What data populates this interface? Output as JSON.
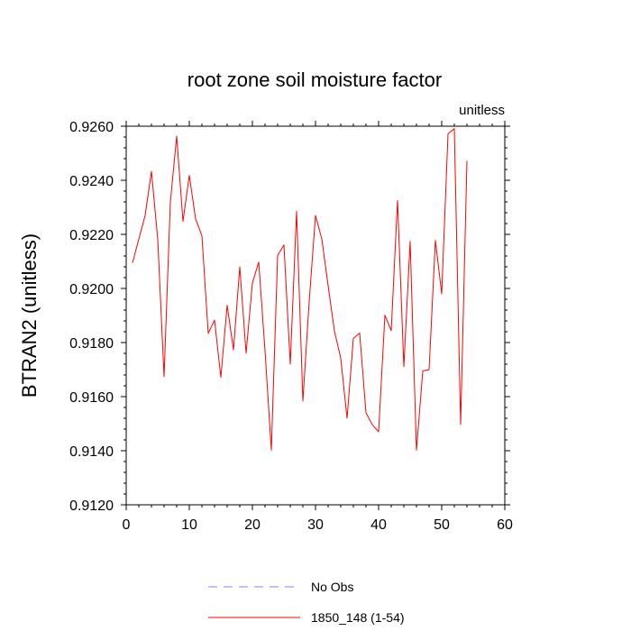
{
  "chart_data": {
    "type": "line",
    "title": "root zone soil moisture factor",
    "units_label": "unitless",
    "ylabel": "BTRAN2  (unitless)",
    "xlabel": "",
    "xlim": [
      0,
      60
    ],
    "ylim": [
      0.912,
      0.926
    ],
    "x_ticks": [
      0,
      10,
      20,
      30,
      40,
      50,
      60
    ],
    "x_tick_labels": [
      "0",
      "10",
      "20",
      "30",
      "40",
      "50",
      "60"
    ],
    "y_ticks": [
      0.912,
      0.914,
      0.916,
      0.918,
      0.92,
      0.922,
      0.924,
      0.926
    ],
    "y_tick_labels": [
      "0.9120",
      "0.9140",
      "0.9160",
      "0.9180",
      "0.9200",
      "0.9220",
      "0.9240",
      "0.9260"
    ],
    "grid": false,
    "legend_position": "bottom",
    "legend": [
      {
        "name": "No Obs",
        "color": "#8080ff",
        "dash": "dashed"
      },
      {
        "name": "1850_148 (1-54)",
        "color": "#ff0000",
        "dash": "solid"
      }
    ],
    "series": [
      {
        "name": "1850_148 (1-54)",
        "color": "#ff0000",
        "x": [
          1,
          2,
          3,
          4,
          5,
          6,
          7,
          8,
          9,
          10,
          11,
          12,
          13,
          14,
          15,
          16,
          17,
          18,
          19,
          20,
          21,
          22,
          23,
          24,
          25,
          26,
          27,
          28,
          29,
          30,
          31,
          32,
          33,
          34,
          35,
          36,
          37,
          38,
          39,
          40,
          41,
          42,
          43,
          44,
          45,
          46,
          47,
          48,
          49,
          50,
          51,
          52,
          53,
          54
        ],
        "values": [
          0.92095,
          0.92182,
          0.9227,
          0.92433,
          0.92182,
          0.91674,
          0.9232,
          0.92563,
          0.92248,
          0.92418,
          0.92257,
          0.92195,
          0.91834,
          0.91883,
          0.91672,
          0.91938,
          0.91773,
          0.9208,
          0.91761,
          0.9202,
          0.92098,
          0.91769,
          0.91402,
          0.92122,
          0.92161,
          0.9172,
          0.92285,
          0.91584,
          0.91952,
          0.9227,
          0.92183,
          0.9201,
          0.91843,
          0.91742,
          0.9152,
          0.91815,
          0.91835,
          0.9154,
          0.91496,
          0.9147,
          0.91901,
          0.91844,
          0.92325,
          0.91711,
          0.92174,
          0.91402,
          0.91695,
          0.917,
          0.92178,
          0.9198,
          0.92572,
          0.92591,
          0.91497,
          0.92472
        ]
      }
    ]
  }
}
